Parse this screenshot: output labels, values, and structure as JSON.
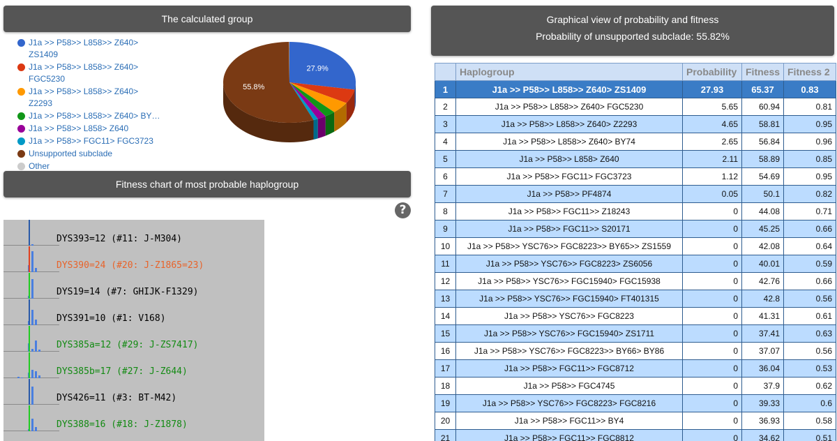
{
  "calculated_group": {
    "title": "The calculated group",
    "legend": [
      {
        "label": "J1a >> P58>> L858>> Z640> ZS1409",
        "color": "#3366cc"
      },
      {
        "label": "J1a >> P58>> L858>> Z640> FGC5230",
        "color": "#dc3912"
      },
      {
        "label": "J1a >> P58>> L858>> Z640> Z2293",
        "color": "#ff9900"
      },
      {
        "label": "J1a >> P58>> L858>> Z640> BY…",
        "color": "#109618"
      },
      {
        "label": "J1a >> P58>> L858> Z640",
        "color": "#990099"
      },
      {
        "label": "J1a >> P58>> FGC11> FGC3723",
        "color": "#0099c6"
      },
      {
        "label": "Unsupported subclade",
        "color": "#7a3a14"
      },
      {
        "label": "Other",
        "color": "#cccccc"
      }
    ]
  },
  "chart_data": {
    "type": "pie",
    "slices": [
      {
        "label": "J1a >> P58>> L858>> Z640> ZS1409",
        "value": 27.9,
        "color": "#3366cc"
      },
      {
        "label": "J1a >> P58>> L858>> Z640> FGC5230",
        "value": 5.65,
        "color": "#dc3912"
      },
      {
        "label": "J1a >> P58>> L858>> Z640> Z2293",
        "value": 4.65,
        "color": "#ff9900"
      },
      {
        "label": "J1a >> P58>> L858>> Z640> BY…",
        "value": 2.65,
        "color": "#109618"
      },
      {
        "label": "J1a >> P58>> L858> Z640",
        "value": 2.11,
        "color": "#990099"
      },
      {
        "label": "J1a >> P58>> FGC11> FGC3723",
        "value": 1.12,
        "color": "#0099c6"
      },
      {
        "label": "Unsupported subclade",
        "value": 55.82,
        "color": "#7a3a14"
      },
      {
        "label": "Other",
        "value": 0.1,
        "color": "#cccccc"
      }
    ],
    "data_labels": {
      "first": "27.9%",
      "unsupported": "55.8%"
    }
  },
  "fitness_chart": {
    "title": "Fitness chart of most probable haplogroup",
    "help_icon": "question-icon",
    "rows": [
      {
        "label": "DYS393=12 (#11: J-M304)",
        "color": "#000000",
        "line_color": "#2a5aa8"
      },
      {
        "label": "DYS390=24 (#20: J-Z1865=23)",
        "color": "#e8632a",
        "line_color": "#e04020"
      },
      {
        "label": "DYS19=14 (#7: GHIJK-F1329)",
        "color": "#000000",
        "line_color": "#22cc22"
      },
      {
        "label": "DYS391=10 (#1: V168)",
        "color": "#000000",
        "line_color": "#2a5aa8"
      },
      {
        "label": "DYS385a=12 (#29: J-ZS7417)",
        "color": "#128a12",
        "line_color": "#22cc22"
      },
      {
        "label": "DYS385b=17 (#27: J-Z644)",
        "color": "#128a12",
        "line_color": "#22cc22"
      },
      {
        "label": "DYS426=11 (#3: BT-M42)",
        "color": "#000000",
        "line_color": "#2a5aa8"
      },
      {
        "label": "DYS388=16 (#18: J-Z1878)",
        "color": "#128a12",
        "line_color": "#22cc22"
      }
    ]
  },
  "graphical_view": {
    "title": "Graphical view of probability and fitness",
    "subtitle": "Probability of unsupported subclade: 55.82%"
  },
  "table": {
    "headers": [
      "",
      "Haplogroup",
      "Probability",
      "Fitness",
      "Fitness 2"
    ],
    "rows": [
      {
        "n": "1",
        "hg": "J1a >> P58>> L858>> Z640> ZS1409",
        "p": "27.93",
        "f": "65.37",
        "f2": "0.83"
      },
      {
        "n": "2",
        "hg": "J1a >> P58>> L858>> Z640> FGC5230",
        "p": "5.65",
        "f": "60.94",
        "f2": "0.81"
      },
      {
        "n": "3",
        "hg": "J1a >> P58>> L858>> Z640> Z2293",
        "p": "4.65",
        "f": "58.81",
        "f2": "0.95"
      },
      {
        "n": "4",
        "hg": "J1a >> P58>> L858>> Z640> BY74",
        "p": "2.65",
        "f": "56.84",
        "f2": "0.96"
      },
      {
        "n": "5",
        "hg": "J1a >> P58>> L858> Z640",
        "p": "2.11",
        "f": "58.89",
        "f2": "0.85"
      },
      {
        "n": "6",
        "hg": "J1a >> P58>> FGC11> FGC3723",
        "p": "1.12",
        "f": "54.69",
        "f2": "0.95"
      },
      {
        "n": "7",
        "hg": "J1a >> P58>> PF4874",
        "p": "0.05",
        "f": "50.1",
        "f2": "0.82"
      },
      {
        "n": "8",
        "hg": "J1a >> P58>> FGC11>> Z18243",
        "p": "0",
        "f": "44.08",
        "f2": "0.71"
      },
      {
        "n": "9",
        "hg": "J1a >> P58>> FGC11>> S20171",
        "p": "0",
        "f": "45.25",
        "f2": "0.66"
      },
      {
        "n": "10",
        "hg": "J1a >> P58>> YSC76>> FGC8223>> BY65>> ZS1559",
        "p": "0",
        "f": "42.08",
        "f2": "0.64"
      },
      {
        "n": "11",
        "hg": "J1a >> P58>> YSC76>> FGC8223> ZS6056",
        "p": "0",
        "f": "40.01",
        "f2": "0.59"
      },
      {
        "n": "12",
        "hg": "J1a >> P58>> YSC76>> FGC15940> FGC15938",
        "p": "0",
        "f": "42.76",
        "f2": "0.66"
      },
      {
        "n": "13",
        "hg": "J1a >> P58>> YSC76>> FGC15940> FT401315",
        "p": "0",
        "f": "42.8",
        "f2": "0.56"
      },
      {
        "n": "14",
        "hg": "J1a >> P58>> YSC76>> FGC8223",
        "p": "0",
        "f": "41.31",
        "f2": "0.61"
      },
      {
        "n": "15",
        "hg": "J1a >> P58>> YSC76>> FGC15940> ZS1711",
        "p": "0",
        "f": "37.41",
        "f2": "0.63"
      },
      {
        "n": "16",
        "hg": "J1a >> P58>> YSC76>> FGC8223>> BY66> BY86",
        "p": "0",
        "f": "37.07",
        "f2": "0.56"
      },
      {
        "n": "17",
        "hg": "J1a >> P58>> FGC11>> FGC8712",
        "p": "0",
        "f": "36.04",
        "f2": "0.53"
      },
      {
        "n": "18",
        "hg": "J1a >> P58>> FGC4745",
        "p": "0",
        "f": "37.9",
        "f2": "0.62"
      },
      {
        "n": "19",
        "hg": "J1a >> P58>> YSC76>> FGC8223> FGC8216",
        "p": "0",
        "f": "39.33",
        "f2": "0.6"
      },
      {
        "n": "20",
        "hg": "J1a >> P58>> FGC11>> BY4",
        "p": "0",
        "f": "36.93",
        "f2": "0.58"
      },
      {
        "n": "21",
        "hg": "J1a >> P58>> FGC11>> FGC8812",
        "p": "0",
        "f": "34.62",
        "f2": "0.51"
      }
    ]
  }
}
